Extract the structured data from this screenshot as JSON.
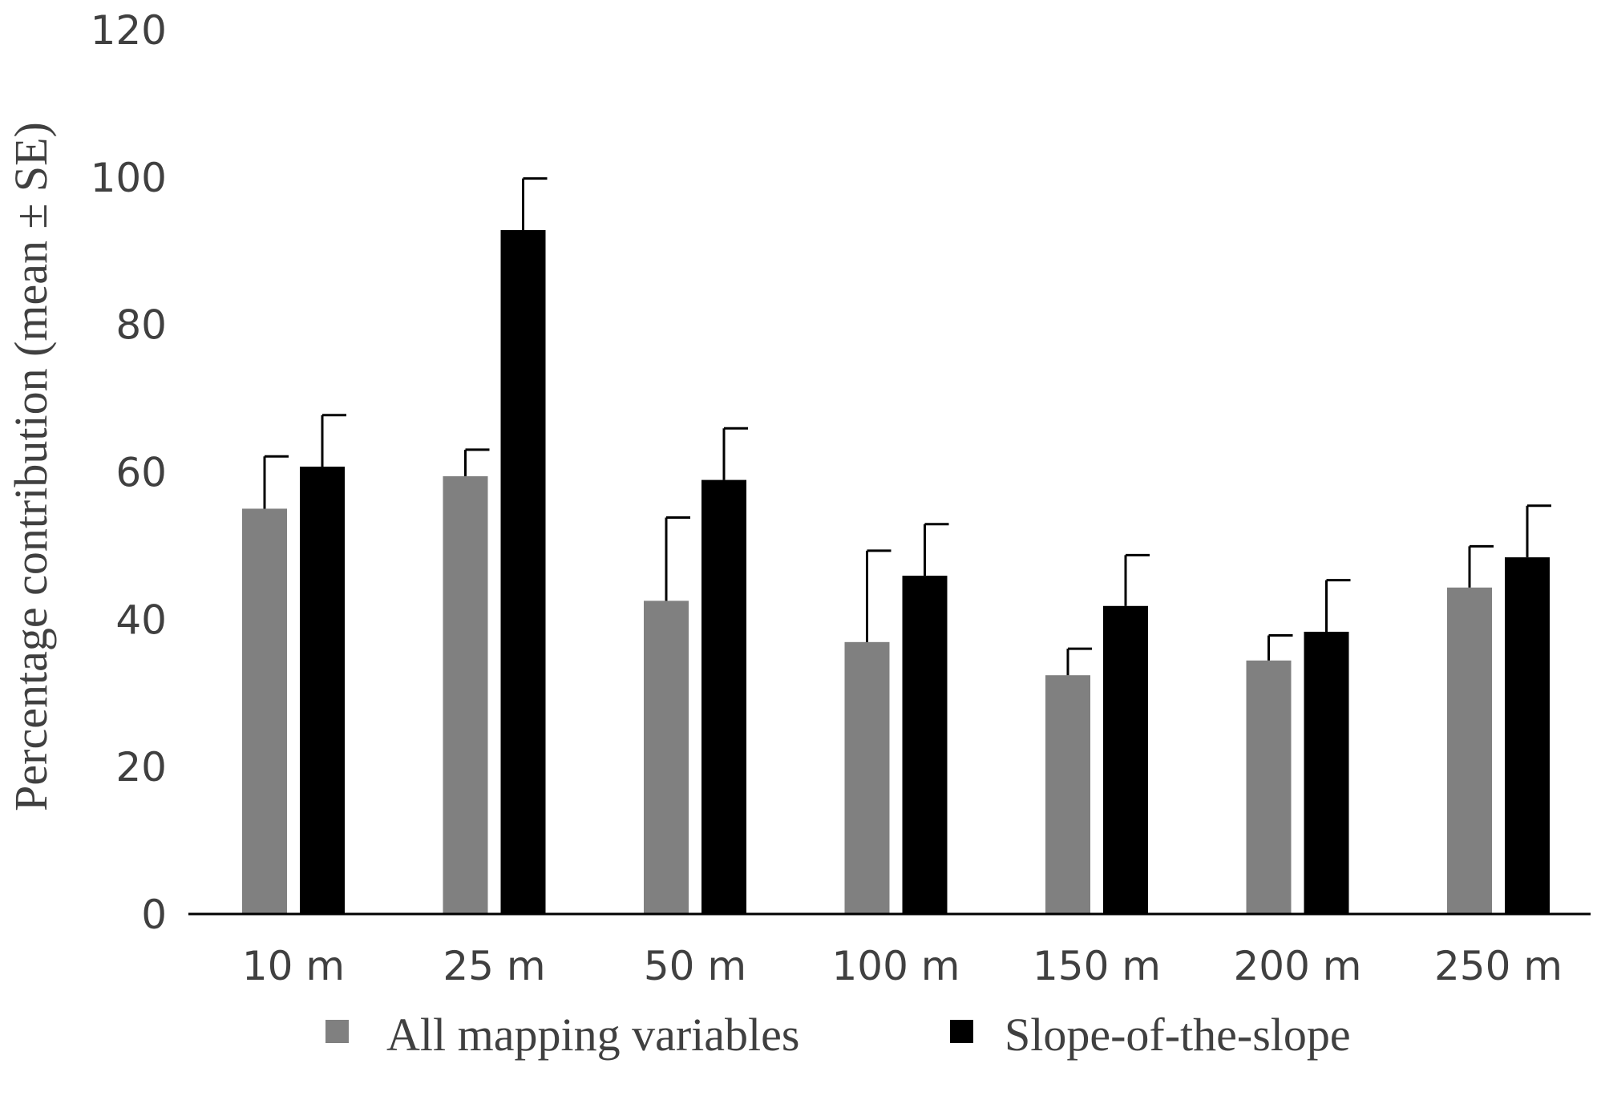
{
  "chart_data": {
    "type": "bar",
    "categories": [
      "10 m",
      "25 m",
      "50 m",
      "100 m",
      "150 m",
      "200 m",
      "250 m"
    ],
    "series": [
      {
        "name": "All mapping variables",
        "color": "#808080",
        "values": [
          55.0,
          59.4,
          42.5,
          36.9,
          32.4,
          34.4,
          44.3
        ],
        "se": [
          7.1,
          3.6,
          11.3,
          12.4,
          3.6,
          3.4,
          5.6
        ]
      },
      {
        "name": "Slope-of-the-slope",
        "color": "#000000",
        "values": [
          60.7,
          92.8,
          58.9,
          45.9,
          41.8,
          38.3,
          48.4
        ],
        "se": [
          7.0,
          7.0,
          7.0,
          7.0,
          6.9,
          7.0,
          7.0
        ]
      }
    ],
    "ylabel": "Percentage contribution (mean ± SE)",
    "xlabel": "",
    "ylim": [
      0,
      120
    ],
    "yticks": [
      0,
      20,
      40,
      60,
      80,
      100,
      120
    ],
    "grid": false,
    "legend_position": "bottom"
  }
}
